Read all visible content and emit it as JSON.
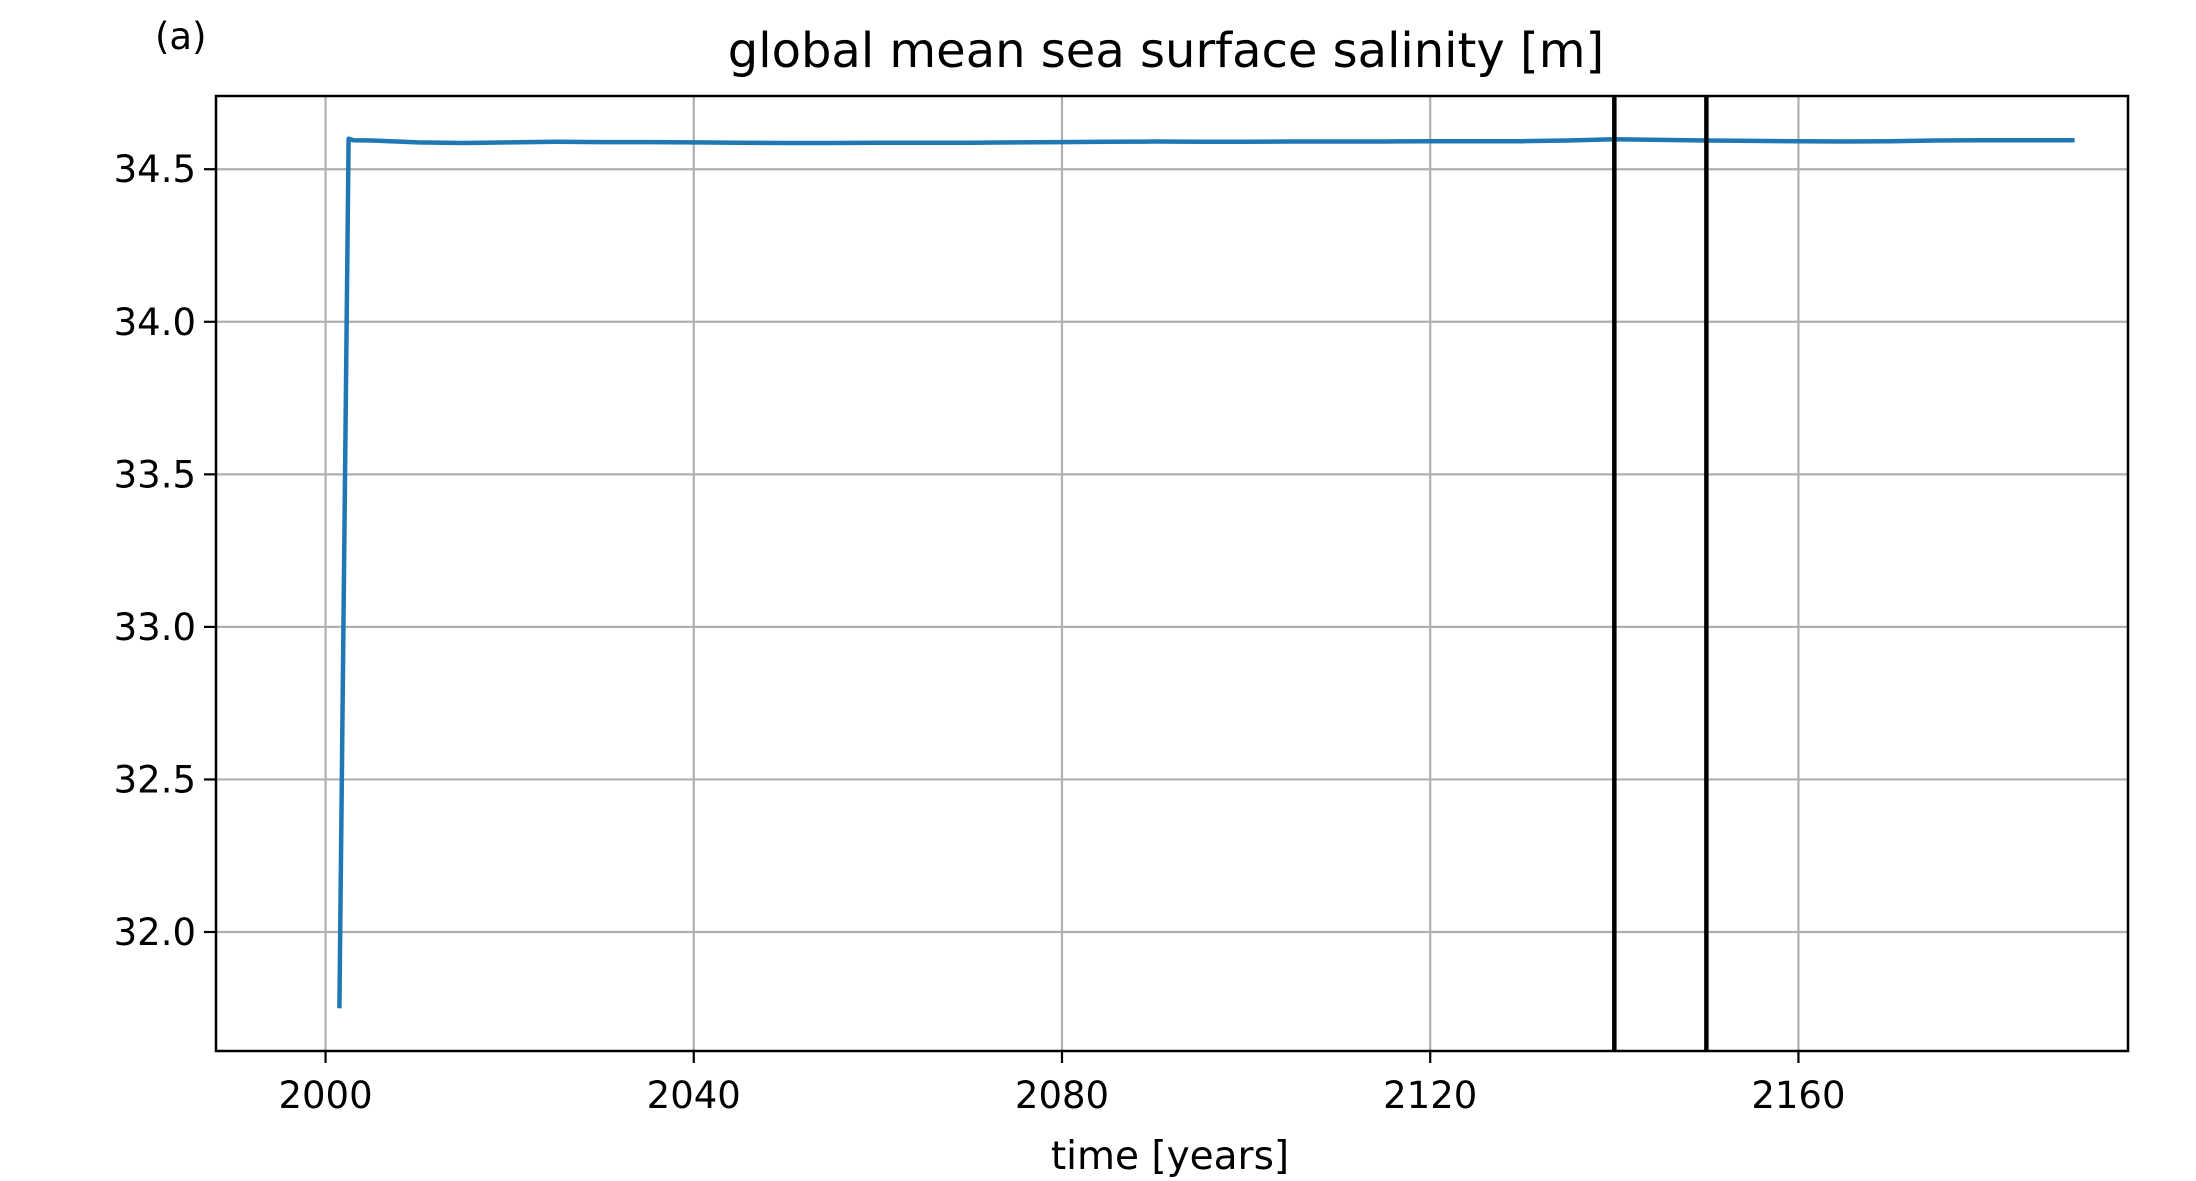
{
  "panel_label": "(a)",
  "chart_data": {
    "type": "line",
    "title": "global mean sea surface salinity [m]",
    "xlabel": "time [years]",
    "ylabel": "",
    "xlim": [
      1988.1,
      2195.8
    ],
    "ylim": [
      31.61,
      34.74
    ],
    "grid": true,
    "legend": "none",
    "xticks": [
      2000,
      2040,
      2080,
      2120,
      2160
    ],
    "xtick_labels": [
      "2000",
      "2040",
      "2080",
      "2120",
      "2160"
    ],
    "yticks": [
      32.0,
      32.5,
      33.0,
      33.5,
      34.0,
      34.5
    ],
    "ytick_labels": [
      "32.0",
      "32.5",
      "33.0",
      "33.5",
      "34.0",
      "34.5"
    ],
    "colors": {
      "series": "#1f77b4",
      "vlines": "#000000",
      "grid": "#b0b0b0",
      "frame": "#000000"
    },
    "vlines": [
      2140,
      2150
    ],
    "series": [
      {
        "x": [
          2001.5,
          2002.5,
          2003.0,
          2005,
          2010,
          2015,
          2020,
          2025,
          2030,
          2035,
          2040,
          2045,
          2050,
          2055,
          2060,
          2065,
          2070,
          2075,
          2080,
          2085,
          2090,
          2095,
          2100,
          2105,
          2110,
          2115,
          2120,
          2125,
          2130,
          2135,
          2140,
          2145,
          2150,
          2155,
          2160,
          2165,
          2170,
          2175,
          2180,
          2185,
          2190
        ],
        "values": [
          31.75,
          34.6,
          34.595,
          34.594,
          34.588,
          34.586,
          34.588,
          34.59,
          34.589,
          34.589,
          34.588,
          34.587,
          34.586,
          34.586,
          34.587,
          34.587,
          34.587,
          34.588,
          34.589,
          34.59,
          34.591,
          34.59,
          34.59,
          34.591,
          34.591,
          34.591,
          34.592,
          34.592,
          34.592,
          34.594,
          34.598,
          34.596,
          34.594,
          34.593,
          34.592,
          34.591,
          34.592,
          34.594,
          34.595,
          34.595,
          34.595
        ]
      }
    ]
  }
}
